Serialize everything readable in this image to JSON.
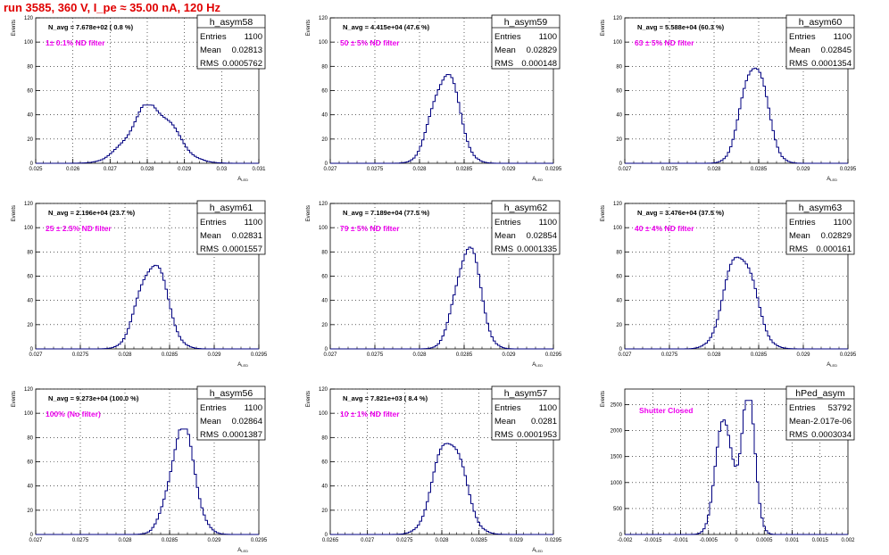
{
  "page_title": "run 3585,   360 V, I_pe ≈ 35.00 nA, 120 Hz",
  "colors": {
    "title": "#e00000",
    "histogram": "#000080",
    "note": "#ee00ee",
    "frame": "#000000",
    "grid": "#000000"
  },
  "chart_data": [
    {
      "type": "histogram",
      "name": "h_asym58",
      "title": "N_avg = 7.678e+02 ( 0.8 %)",
      "note": "1± 0.1% ND filter",
      "stats": {
        "Entries": "1100",
        "Mean": "0.02813",
        "RMS": "0.0005762"
      },
      "ylabel": "Events",
      "xlabel": "A_LED",
      "grid": true,
      "xlim": [
        0.025,
        0.031
      ],
      "ylim": [
        0,
        120
      ],
      "yticks": [
        0,
        20,
        40,
        60,
        80,
        100,
        120
      ],
      "yticklabels": [
        "0",
        "20",
        "40",
        "60",
        "80",
        "100",
        "120"
      ],
      "xticks": [
        0.025,
        0.026,
        0.027,
        0.028,
        0.029,
        0.03,
        0.031
      ],
      "xticklabels": [
        "0.025",
        "0.026",
        "0.027",
        "0.028",
        "0.029",
        "0.03",
        "0.031"
      ],
      "mean": 0.02813,
      "rms": 0.0005762,
      "peak": 48
    },
    {
      "type": "histogram",
      "name": "h_asym59",
      "title": "N_avg = 4.415e+04 (47.6 %)",
      "note": "50 ± 5% ND filter",
      "stats": {
        "Entries": "1100",
        "Mean": "0.02829",
        "RMS": "0.000148"
      },
      "ylabel": "Events",
      "xlabel": "A_LED",
      "grid": true,
      "xlim": [
        0.027,
        0.0295
      ],
      "ylim": [
        0,
        120
      ],
      "yticks": [
        0,
        20,
        40,
        60,
        80,
        100,
        120
      ],
      "yticklabels": [
        "0",
        "20",
        "40",
        "60",
        "80",
        "100",
        "120"
      ],
      "xticks": [
        0.027,
        0.0275,
        0.028,
        0.0285,
        0.029,
        0.0295
      ],
      "xticklabels": [
        "0.027",
        "0.0275",
        "0.028",
        "0.0285",
        "0.029",
        "0.0295"
      ],
      "mean": 0.02829,
      "rms": 0.000148,
      "peak": 76
    },
    {
      "type": "histogram",
      "name": "h_asym60",
      "title": "N_avg = 5.588e+04 (60.3 %)",
      "note": "63 ± 5% ND filter",
      "stats": {
        "Entries": "1100",
        "Mean": "0.02845",
        "RMS": "0.0001354"
      },
      "ylabel": "Events",
      "xlabel": "A_LED",
      "grid": true,
      "xlim": [
        0.027,
        0.0295
      ],
      "ylim": [
        0,
        120
      ],
      "yticks": [
        0,
        20,
        40,
        60,
        80,
        100,
        120
      ],
      "yticklabels": [
        "0",
        "20",
        "40",
        "60",
        "80",
        "100",
        "120"
      ],
      "xticks": [
        0.027,
        0.0275,
        0.028,
        0.0285,
        0.029,
        0.0295
      ],
      "xticklabels": [
        "0.027",
        "0.0275",
        "0.028",
        "0.0285",
        "0.029",
        "0.0295"
      ],
      "mean": 0.02845,
      "rms": 0.0001354,
      "peak": 86
    },
    {
      "type": "histogram",
      "name": "h_asym61",
      "title": "N_avg = 2.196e+04 (23.7 %)",
      "note": "25 ± 2.5% ND filter",
      "stats": {
        "Entries": "1100",
        "Mean": "0.02831",
        "RMS": "0.0001557"
      },
      "ylabel": "Events",
      "xlabel": "A_LED",
      "grid": true,
      "xlim": [
        0.027,
        0.0295
      ],
      "ylim": [
        0,
        120
      ],
      "yticks": [
        0,
        20,
        40,
        60,
        80,
        100,
        120
      ],
      "yticklabels": [
        "0",
        "20",
        "40",
        "60",
        "80",
        "100",
        "120"
      ],
      "xticks": [
        0.027,
        0.0275,
        0.028,
        0.0285,
        0.029,
        0.0295
      ],
      "xticklabels": [
        "0.027",
        "0.0275",
        "0.028",
        "0.0285",
        "0.029",
        "0.0295"
      ],
      "mean": 0.02831,
      "rms": 0.0001557,
      "peak": 73
    },
    {
      "type": "histogram",
      "name": "h_asym62",
      "title": "N_avg = 7.189e+04 (77.5 %)",
      "note": "79 ± 5% ND filter",
      "stats": {
        "Entries": "1100",
        "Mean": "0.02854",
        "RMS": "0.0001335"
      },
      "ylabel": "Events",
      "xlabel": "A_LED",
      "grid": true,
      "xlim": [
        0.027,
        0.0295
      ],
      "ylim": [
        0,
        120
      ],
      "yticks": [
        0,
        20,
        40,
        60,
        80,
        100,
        120
      ],
      "yticklabels": [
        "0",
        "20",
        "40",
        "60",
        "80",
        "100",
        "120"
      ],
      "xticks": [
        0.027,
        0.0275,
        0.028,
        0.0285,
        0.029,
        0.0295
      ],
      "xticklabels": [
        "0.027",
        "0.0275",
        "0.028",
        "0.0285",
        "0.029",
        "0.0295"
      ],
      "mean": 0.02854,
      "rms": 0.0001335,
      "peak": 86
    },
    {
      "type": "histogram",
      "name": "h_asym63",
      "title": "N_avg = 3.476e+04 (37.5 %)",
      "note": "40 ± 4% ND filter",
      "stats": {
        "Entries": "1100",
        "Mean": "0.02829",
        "RMS": "0.000161"
      },
      "ylabel": "Events",
      "xlabel": "A_LED",
      "grid": true,
      "xlim": [
        0.027,
        0.0295
      ],
      "ylim": [
        0,
        120
      ],
      "yticks": [
        0,
        20,
        40,
        60,
        80,
        100,
        120
      ],
      "yticklabels": [
        "0",
        "20",
        "40",
        "60",
        "80",
        "100",
        "120"
      ],
      "xticks": [
        0.027,
        0.0275,
        0.028,
        0.0285,
        0.029,
        0.0295
      ],
      "xticklabels": [
        "0.027",
        "0.0275",
        "0.028",
        "0.0285",
        "0.029",
        "0.0295"
      ],
      "mean": 0.02829,
      "rms": 0.000161,
      "peak": 82
    },
    {
      "type": "histogram",
      "name": "h_asym56",
      "title": "N_avg = 9.273e+04 (100.0 %)",
      "note": "100% (No filter)",
      "stats": {
        "Entries": "1100",
        "Mean": "0.02864",
        "RMS": "0.0001387"
      },
      "ylabel": "Events",
      "xlabel": "A_LED",
      "grid": true,
      "xlim": [
        0.027,
        0.0295
      ],
      "ylim": [
        0,
        120
      ],
      "yticks": [
        0,
        20,
        40,
        60,
        80,
        100,
        120
      ],
      "yticklabels": [
        "0",
        "20",
        "40",
        "60",
        "80",
        "100",
        "120"
      ],
      "xticks": [
        0.027,
        0.0275,
        0.028,
        0.0285,
        0.029,
        0.0295
      ],
      "xticklabels": [
        "0.027",
        "0.0275",
        "0.028",
        "0.0285",
        "0.029",
        "0.0295"
      ],
      "mean": 0.02864,
      "rms": 0.0001387,
      "peak": 87
    },
    {
      "type": "histogram",
      "name": "h_asym57",
      "title": "N_avg = 7.821e+03 ( 8.4 %)",
      "note": "10 ± 1% ND filter",
      "stats": {
        "Entries": "1100",
        "Mean": "0.0281",
        "RMS": "0.0001953"
      },
      "ylabel": "Events",
      "xlabel": "A_LED",
      "grid": true,
      "xlim": [
        0.0265,
        0.0295
      ],
      "ylim": [
        0,
        120
      ],
      "yticks": [
        0,
        20,
        40,
        60,
        80,
        100,
        120
      ],
      "yticklabels": [
        "0",
        "20",
        "40",
        "60",
        "80",
        "100",
        "120"
      ],
      "xticks": [
        0.0265,
        0.027,
        0.0275,
        0.028,
        0.0285,
        0.029,
        0.0295
      ],
      "xticklabels": [
        "0.0265",
        "0.027",
        "0.0275",
        "0.028",
        "0.0285",
        "0.029",
        "0.0295"
      ],
      "mean": 0.0281,
      "rms": 0.0001953,
      "peak": 82
    },
    {
      "type": "histogram",
      "name": "hPed_asym",
      "title": "",
      "note": "Shutter Closed",
      "stats": {
        "Entries": "53792",
        "Mean": "-2.017e-06",
        "RMS": "0.0003034"
      },
      "ylabel": "Events",
      "xlabel": "",
      "grid": true,
      "xlim": [
        -0.002,
        0.002
      ],
      "ylim": [
        0,
        2800
      ],
      "yticks": [
        0,
        500,
        1000,
        1500,
        2000,
        2500
      ],
      "yticklabels": [
        "0",
        "500",
        "1000",
        "1500",
        "2000",
        "2500"
      ],
      "xticks": [
        -0.002,
        -0.0015,
        -0.001,
        -0.0005,
        0,
        0.0005,
        0.001,
        0.0015,
        0.002
      ],
      "xticklabels": [
        "-0.002",
        "-0.0015",
        "-0.001",
        "-0.0005",
        "0",
        "0.0005",
        "0.001",
        "0.0015",
        "0.002"
      ],
      "bimodal": [
        {
          "mean": -0.00021,
          "rms": 0.00015,
          "peak": 2300
        },
        {
          "mean": 0.00022,
          "rms": 0.00012,
          "peak": 2580
        }
      ],
      "peak": 2580
    }
  ]
}
